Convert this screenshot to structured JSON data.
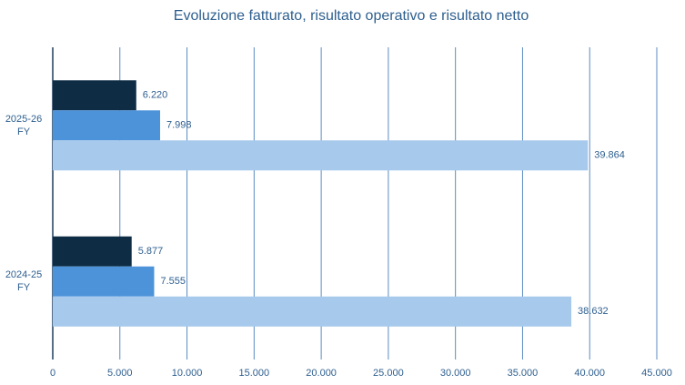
{
  "chart_data": {
    "type": "hbar",
    "title": "Evoluzione fatturato, risultato operativo e risultato netto",
    "categories": [
      "2025-26 FY",
      "2024-25 FY"
    ],
    "series": [
      {
        "color": "#0e2d44",
        "values": [
          6220,
          5877
        ],
        "value_labels": [
          "6.220",
          "5.877"
        ]
      },
      {
        "color": "#4d93da",
        "values": [
          7998,
          7555
        ],
        "value_labels": [
          "7.998",
          "7.555"
        ]
      },
      {
        "color": "#a6c9ec",
        "values": [
          39864,
          38632
        ],
        "value_labels": [
          "39.864",
          "38.632"
        ]
      }
    ],
    "xlim": [
      0,
      45000
    ],
    "xticks": [
      0,
      {
        "value": 5000,
        "label": "5.000"
      },
      {
        "value": 10000,
        "label": "10.000"
      },
      {
        "value": 15000,
        "label": "15.000"
      },
      {
        "value": 20000,
        "label": "20.000"
      },
      {
        "value": 25000,
        "label": "25.000"
      },
      {
        "value": 30000,
        "label": "30.000"
      },
      {
        "value": 35000,
        "label": "35.000"
      },
      {
        "value": 40000,
        "label": "40.000"
      },
      {
        "value": 45000,
        "label": "45.000"
      }
    ],
    "grid": true
  }
}
